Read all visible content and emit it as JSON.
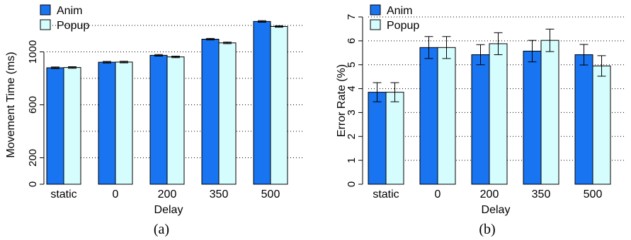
{
  "colors": {
    "anim": "#1874f0",
    "popup": "#d6fdfd",
    "bar_stroke": "#000000",
    "grid": "#000000"
  },
  "chart_data": [
    {
      "type": "bar",
      "caption": "(a)",
      "xlabel": "Delay",
      "ylabel": "Movement Time (ms)",
      "categories": [
        "static",
        "0",
        "200",
        "350",
        "500"
      ],
      "ylim": [
        0,
        1200
      ],
      "yticks": [
        0,
        200,
        600,
        1000
      ],
      "gridlines": [
        200,
        400,
        600,
        800,
        1000,
        1200
      ],
      "grid": true,
      "legend": {
        "placement": "top-left",
        "entries": [
          "Anim",
          "Popup"
        ]
      },
      "series": [
        {
          "name": "Anim",
          "values": [
            880,
            922,
            974,
            1096,
            1230
          ],
          "err": [
            6,
            6,
            6,
            6,
            6
          ]
        },
        {
          "name": "Popup",
          "values": [
            882,
            923,
            962,
            1068,
            1192
          ],
          "err": [
            6,
            6,
            6,
            6,
            6
          ]
        }
      ]
    },
    {
      "type": "bar",
      "caption": "(b)",
      "xlabel": "Delay",
      "ylabel": "Error Rate (%)",
      "categories": [
        "static",
        "0",
        "200",
        "350",
        "500"
      ],
      "ylim": [
        0,
        7
      ],
      "yticks": [
        0,
        1,
        2,
        3,
        4,
        5,
        6,
        7
      ],
      "gridlines": [
        1,
        2,
        3,
        4,
        5,
        6,
        7
      ],
      "grid": true,
      "legend": {
        "placement": "top-left",
        "entries": [
          "Anim",
          "Popup"
        ]
      },
      "series": [
        {
          "name": "Anim",
          "values": [
            3.85,
            5.72,
            5.42,
            5.57,
            5.42
          ],
          "err": [
            0.4,
            0.46,
            0.42,
            0.45,
            0.43
          ]
        },
        {
          "name": "Popup",
          "values": [
            3.85,
            5.72,
            5.88,
            6.02,
            4.95
          ],
          "err": [
            0.4,
            0.46,
            0.46,
            0.47,
            0.43
          ]
        }
      ]
    }
  ]
}
